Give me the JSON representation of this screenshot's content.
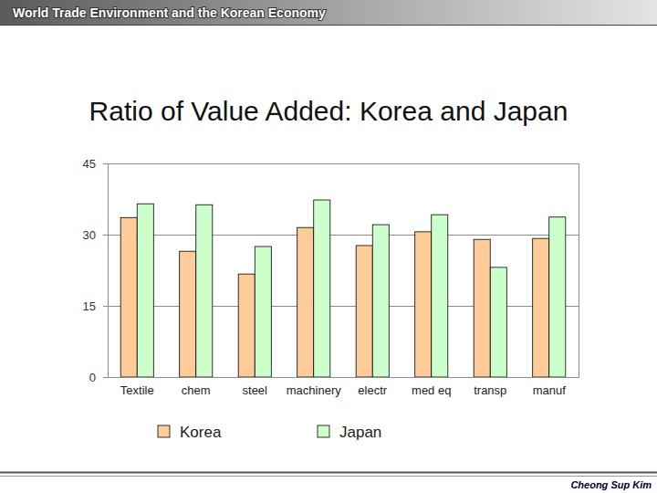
{
  "slide": {
    "header": "World Trade Environment and the Korean Economy",
    "footer": "Cheong Sup Kim"
  },
  "chart_data": {
    "type": "bar",
    "title": "Ratio of Value Added: Korea and Japan",
    "categories": [
      "Textile",
      "chem",
      "steel",
      "machinery",
      "electr",
      "med eq",
      "transp",
      "manuf"
    ],
    "series": [
      {
        "name": "Korea",
        "color": "#ffcc99",
        "values": [
          33.6,
          26.5,
          21.7,
          31.5,
          27.7,
          30.6,
          29.0,
          29.2
        ]
      },
      {
        "name": "Japan",
        "color": "#ccffcc",
        "values": [
          36.5,
          36.3,
          27.5,
          37.3,
          32.1,
          34.2,
          23.1,
          33.7
        ]
      }
    ],
    "ylim": [
      0,
      45
    ],
    "yticks": [
      0,
      15,
      30,
      45
    ],
    "grid": true,
    "legend": "bottom"
  }
}
